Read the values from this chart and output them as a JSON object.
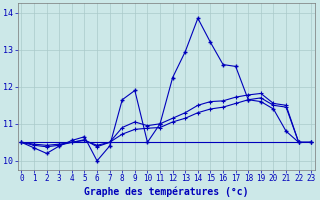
{
  "title": "Graphe des températures (°c)",
  "background_color": "#cce8e8",
  "grid_color": "#aacaca",
  "line_color": "#0000bb",
  "x_ticks": [
    0,
    1,
    2,
    3,
    4,
    5,
    6,
    7,
    8,
    9,
    10,
    11,
    12,
    13,
    14,
    15,
    16,
    17,
    18,
    19,
    20,
    21,
    22,
    23
  ],
  "y_ticks": [
    10,
    11,
    12,
    13,
    14
  ],
  "ylim": [
    9.75,
    14.25
  ],
  "xlim": [
    -0.3,
    23.3
  ],
  "series1": {
    "x": [
      0,
      1,
      2,
      3,
      4,
      5,
      6,
      7,
      8,
      9,
      10,
      11,
      12,
      13,
      14,
      15,
      16,
      17,
      18,
      19,
      20,
      21,
      22,
      23
    ],
    "y": [
      10.5,
      10.35,
      10.2,
      10.4,
      10.55,
      10.65,
      10.0,
      10.4,
      11.65,
      11.9,
      10.5,
      11.0,
      12.25,
      12.95,
      13.85,
      13.2,
      12.6,
      12.55,
      11.65,
      11.6,
      11.4,
      10.8,
      10.5,
      10.5
    ]
  },
  "series2": {
    "x": [
      0,
      1,
      2,
      3,
      4,
      5,
      6,
      7,
      8,
      9,
      10,
      11,
      12,
      13,
      14,
      15,
      16,
      17,
      18,
      19,
      20,
      21,
      22,
      23
    ],
    "y": [
      10.5,
      10.5,
      10.5,
      10.5,
      10.5,
      10.5,
      10.5,
      10.5,
      10.5,
      10.5,
      10.5,
      10.5,
      10.5,
      10.5,
      10.5,
      10.5,
      10.5,
      10.5,
      10.5,
      10.5,
      10.5,
      10.5,
      10.5,
      10.5
    ]
  },
  "series3": {
    "x": [
      0,
      1,
      2,
      3,
      4,
      5,
      6,
      7,
      8,
      9,
      10,
      11,
      12,
      13,
      14,
      15,
      16,
      17,
      18,
      19,
      20,
      21,
      22,
      23
    ],
    "y": [
      10.5,
      10.45,
      10.42,
      10.45,
      10.5,
      10.55,
      10.42,
      10.5,
      10.72,
      10.85,
      10.88,
      10.9,
      11.05,
      11.15,
      11.3,
      11.4,
      11.45,
      11.55,
      11.65,
      11.7,
      11.5,
      11.45,
      10.5,
      10.5
    ]
  },
  "series4": {
    "x": [
      0,
      1,
      2,
      3,
      4,
      5,
      6,
      7,
      8,
      9,
      10,
      11,
      12,
      13,
      14,
      15,
      16,
      17,
      18,
      19,
      20,
      21,
      22,
      23
    ],
    "y": [
      10.5,
      10.42,
      10.38,
      10.42,
      10.5,
      10.57,
      10.38,
      10.5,
      10.9,
      11.05,
      10.95,
      11.0,
      11.15,
      11.3,
      11.5,
      11.6,
      11.62,
      11.72,
      11.78,
      11.82,
      11.55,
      11.5,
      10.5,
      10.5
    ]
  }
}
